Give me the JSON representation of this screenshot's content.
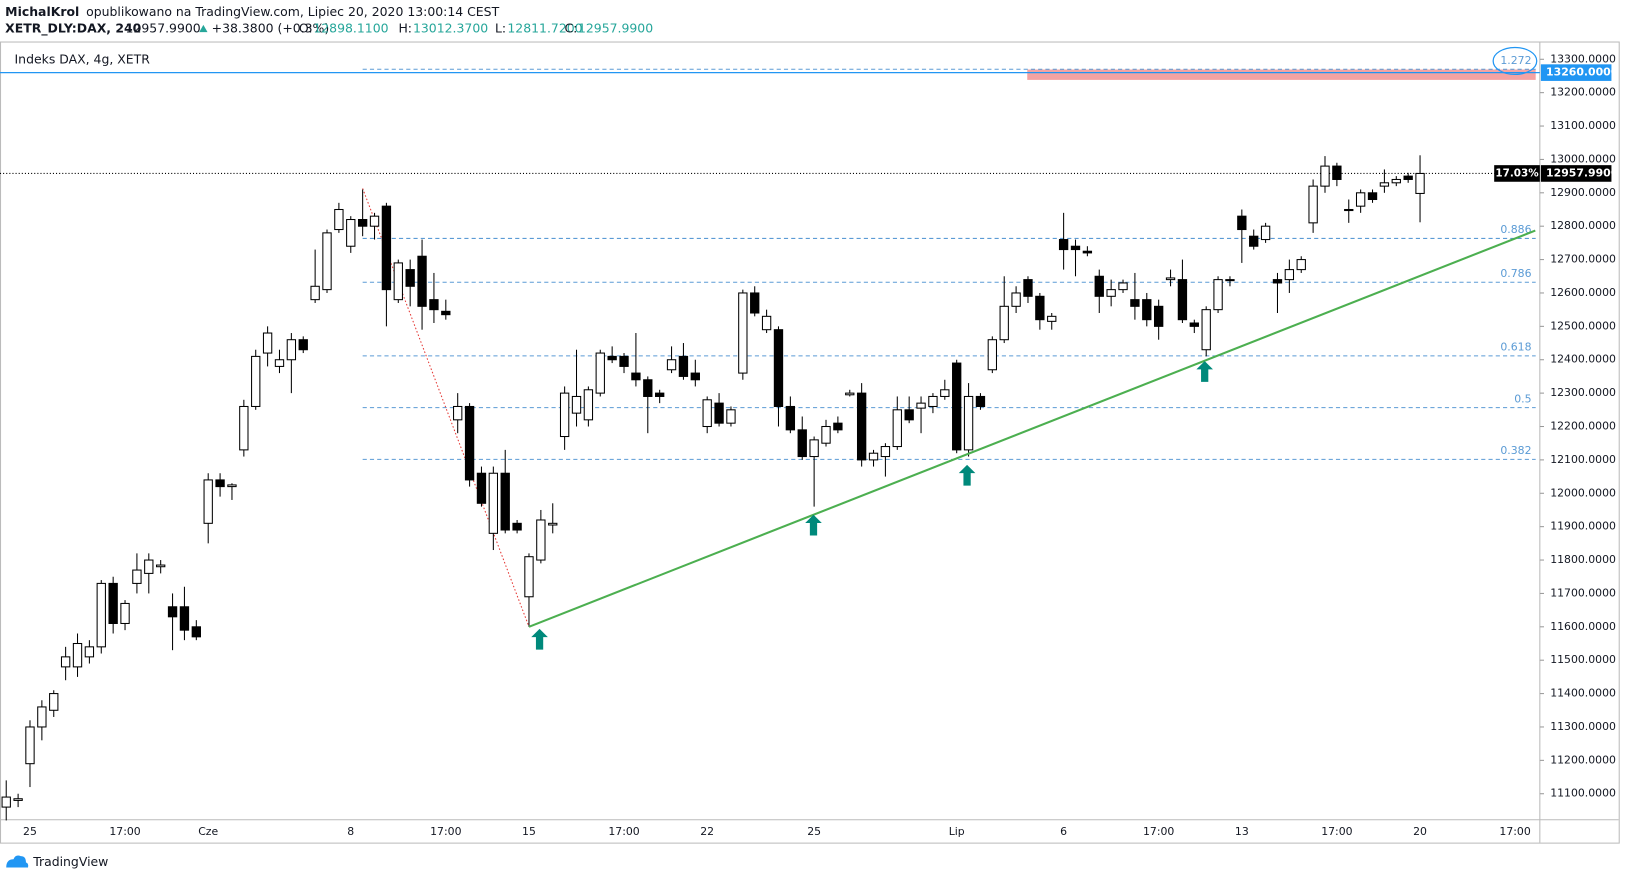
{
  "header": {
    "author": "MichalKrol",
    "published": "opublikowano na TradingView.com, Lipiec 20, 2020 13:00:14 CEST",
    "symbol": "XETR_DLY:DAX, 240",
    "last": "12957.9900",
    "change": "+38.3800 (+0.3%)",
    "ohlc": [
      {
        "label": "O:",
        "value": "12898.1100"
      },
      {
        "label": "H:",
        "value": "13012.3700"
      },
      {
        "label": "L:",
        "value": "12811.7200"
      },
      {
        "label": "C:",
        "value": "12957.9900"
      }
    ]
  },
  "footer": {
    "brand": "TradingView"
  },
  "chart_data": {
    "type": "candlestick",
    "legend": "Indeks DAX, 4g, XETR",
    "categories": [
      null,
      null,
      "25",
      null,
      null,
      null,
      null,
      null,
      null,
      null,
      "17:00",
      null,
      null,
      null,
      null,
      null,
      null,
      "Cze",
      null,
      null,
      null,
      null,
      null,
      null,
      null,
      null,
      null,
      null,
      null,
      "8",
      null,
      null,
      null,
      null,
      null,
      null,
      null,
      "17:00",
      null,
      null,
      null,
      null,
      null,
      null,
      "15",
      null,
      null,
      null,
      null,
      null,
      null,
      null,
      "17:00",
      null,
      null,
      null,
      null,
      null,
      null,
      "22",
      null,
      null,
      null,
      null,
      null,
      null,
      null,
      null,
      "25",
      null,
      null,
      null,
      null,
      null,
      null,
      null,
      null,
      null,
      null,
      null,
      "Lip",
      null,
      null,
      null,
      null,
      null,
      null,
      null,
      null,
      "6",
      null,
      null,
      null,
      null,
      null,
      null,
      null,
      "17:00",
      null,
      null,
      null,
      null,
      null,
      null,
      "13",
      null,
      null,
      null,
      null,
      null,
      null,
      null,
      "17:00",
      null,
      null,
      null,
      null,
      null,
      null,
      "20",
      null,
      null,
      null,
      null,
      null,
      null,
      null,
      "17:00",
      null
    ],
    "open": [
      11060,
      11080,
      11190,
      11300,
      11350,
      11480,
      11480,
      11510,
      11540,
      11730,
      11610,
      11730,
      11760,
      11780,
      11660,
      11660,
      11600,
      11910,
      12040,
      12020,
      12130,
      12260,
      12420,
      12380,
      12400,
      12460,
      12580,
      12610,
      12790,
      12740,
      12820,
      12800,
      12860,
      12580,
      12670,
      12710,
      12580,
      12545,
      12220,
      12260,
      12060,
      11880,
      12060,
      11910,
      11690,
      11800,
      11905,
      12170,
      12240,
      12220,
      12300,
      12410,
      12410,
      12360,
      12340,
      12300,
      12370,
      12410,
      12360,
      12200,
      12270,
      12210,
      12360,
      12600,
      12490,
      12490,
      12260,
      12190,
      12110,
      12150,
      12210,
      12295,
      12300,
      12100,
      12110,
      12140,
      12250,
      12255,
      12260,
      12290,
      12390,
      12130,
      12290,
      12370,
      12460,
      12560,
      12640,
      12590,
      12515,
      12760,
      12740,
      12725,
      12650,
      12590,
      12610,
      12580,
      12580,
      12560,
      12640,
      12640,
      12510,
      12430,
      12550,
      12640,
      12830,
      12770,
      12760,
      12640,
      12640,
      12670,
      12810,
      12920,
      12980,
      12850,
      12860,
      12900,
      12920,
      12930,
      12950,
      12898.11,
      null,
      null,
      null,
      null,
      null,
      null,
      null,
      null,
      null
    ],
    "high": [
      11140,
      11100,
      11320,
      11380,
      11410,
      11540,
      11580,
      11560,
      11740,
      11750,
      11680,
      11820,
      11820,
      11800,
      11700,
      11720,
      11620,
      12060,
      12060,
      12030,
      12280,
      12430,
      12500,
      12430,
      12480,
      12470,
      12730,
      12790,
      12870,
      12830,
      12910,
      12840,
      12870,
      12700,
      12700,
      12760,
      12660,
      12580,
      12300,
      12270,
      12080,
      12080,
      12130,
      11920,
      11820,
      11950,
      11970,
      12320,
      12430,
      12320,
      12430,
      12440,
      12420,
      12480,
      12350,
      12310,
      12440,
      12450,
      12400,
      12290,
      12300,
      12260,
      12610,
      12620,
      12550,
      12500,
      12290,
      12230,
      12170,
      12220,
      12230,
      12310,
      12330,
      12130,
      12150,
      12290,
      12290,
      12290,
      12300,
      12340,
      12400,
      12330,
      12300,
      12470,
      12650,
      12620,
      12650,
      12600,
      12540,
      12840,
      12760,
      12740,
      12670,
      12640,
      12640,
      12660,
      12600,
      12580,
      12670,
      12700,
      12520,
      12560,
      12650,
      12650,
      12850,
      12790,
      12810,
      12660,
      12700,
      12710,
      12940,
      13010,
      12990,
      12880,
      12910,
      12910,
      12970,
      12950,
      12960,
      13012.37,
      null,
      null,
      null,
      null,
      null,
      null,
      null,
      null,
      null
    ],
    "low": [
      11020,
      11060,
      11120,
      11260,
      11330,
      11440,
      11450,
      11490,
      11520,
      11580,
      11590,
      11700,
      11700,
      11760,
      11530,
      11560,
      11560,
      11850,
      11990,
      11980,
      12110,
      12250,
      12380,
      12360,
      12300,
      12420,
      12570,
      12600,
      12780,
      12720,
      12770,
      12760,
      12500,
      12570,
      12560,
      12490,
      12510,
      12520,
      12180,
      12020,
      11960,
      11830,
      11880,
      11880,
      11600,
      11790,
      11880,
      12130,
      12200,
      12200,
      12290,
      12390,
      12360,
      12320,
      12180,
      12270,
      12360,
      12340,
      12320,
      12180,
      12200,
      12200,
      12340,
      12530,
      12480,
      12200,
      12180,
      12100,
      11960,
      12140,
      12180,
      12290,
      12080,
      12080,
      12050,
      12130,
      12210,
      12180,
      12240,
      12280,
      12120,
      12110,
      12250,
      12360,
      12450,
      12540,
      12570,
      12490,
      12490,
      12670,
      12650,
      12710,
      12540,
      12560,
      12600,
      12520,
      12500,
      12460,
      12620,
      12510,
      12480,
      12410,
      12540,
      12620,
      12690,
      12730,
      12750,
      12540,
      12600,
      12660,
      12780,
      12900,
      12920,
      12810,
      12840,
      12870,
      12900,
      12920,
      12930,
      12811.72,
      null,
      null,
      null,
      null,
      null,
      null,
      null,
      null,
      null
    ],
    "close": [
      11090,
      11085,
      11300,
      11360,
      11400,
      11510,
      11550,
      11540,
      11730,
      11610,
      11670,
      11770,
      11800,
      11785,
      11630,
      11590,
      11570,
      12040,
      12020,
      12025,
      12260,
      12410,
      12480,
      12400,
      12460,
      12430,
      12620,
      12780,
      12850,
      12820,
      12800,
      12830,
      12610,
      12690,
      12620,
      12560,
      12550,
      12535,
      12260,
      12040,
      11970,
      12060,
      11890,
      11890,
      11810,
      11920,
      11910,
      12300,
      12290,
      12310,
      12420,
      12400,
      12380,
      12340,
      12290,
      12290,
      12400,
      12350,
      12340,
      12280,
      12210,
      12250,
      12600,
      12540,
      12530,
      12260,
      12190,
      12110,
      12160,
      12200,
      12190,
      12300,
      12100,
      12120,
      12140,
      12250,
      12220,
      12270,
      12290,
      12310,
      12130,
      12290,
      12260,
      12460,
      12560,
      12600,
      12590,
      12520,
      12530,
      12730,
      12730,
      12720,
      12590,
      12610,
      12630,
      12560,
      12520,
      12500,
      12645,
      12520,
      12500,
      12550,
      12640,
      12640,
      12790,
      12740,
      12800,
      12630,
      12670,
      12700,
      12920,
      12980,
      12940,
      12850,
      12900,
      12880,
      12930,
      12940,
      12940,
      12957.99,
      null,
      null,
      null,
      null,
      null,
      null,
      null,
      null,
      null
    ],
    "up_color": "#ffffff",
    "down_color": "#000000",
    "ylim": [
      11022,
      13347
    ],
    "yticks": [
      {
        "value": 11100,
        "label": "11100.0000"
      },
      {
        "value": 11200,
        "label": "11200.0000"
      },
      {
        "value": 11300,
        "label": "11300.0000"
      },
      {
        "value": 11400,
        "label": "11400.0000"
      },
      {
        "value": 11500,
        "label": "11500.0000"
      },
      {
        "value": 11600,
        "label": "11600.0000"
      },
      {
        "value": 11700,
        "label": "11700.0000"
      },
      {
        "value": 11800,
        "label": "11800.0000"
      },
      {
        "value": 11900,
        "label": "11900.0000"
      },
      {
        "value": 12000,
        "label": "12000.0000"
      },
      {
        "value": 12100,
        "label": "12100.0000"
      },
      {
        "value": 12200,
        "label": "12200.0000"
      },
      {
        "value": 12300,
        "label": "12300.0000"
      },
      {
        "value": 12400,
        "label": "12400.0000"
      },
      {
        "value": 12500,
        "label": "12500.0000"
      },
      {
        "value": 12600,
        "label": "12600.0000"
      },
      {
        "value": 12700,
        "label": "12700.0000"
      },
      {
        "value": 12800,
        "label": "12800.0000"
      },
      {
        "value": 12900,
        "label": "12900.0000"
      },
      {
        "value": 13000,
        "label": "13000.0000"
      },
      {
        "value": 13100,
        "label": "13100.0000"
      },
      {
        "value": 13200,
        "label": "13200.0000"
      },
      {
        "value": 13300,
        "label": "13300.0000"
      }
    ],
    "fib": {
      "x": [
        30,
        44
      ],
      "y": [
        12913,
        11600
      ],
      "levels": [
        0.382,
        0.5,
        0.618,
        0.786,
        0.886,
        1.272
      ],
      "color": "#5b9bd5"
    },
    "trendline": {
      "x": [
        44,
        128.7
      ],
      "y": [
        11600,
        12787
      ],
      "color": "#4caf50"
    },
    "price_line": {
      "value": 13260,
      "label": "13260.0000",
      "color": "#2196f3"
    },
    "last": {
      "value": 12957.99,
      "label": "12957.9900",
      "percent": "17.03%"
    }
  }
}
